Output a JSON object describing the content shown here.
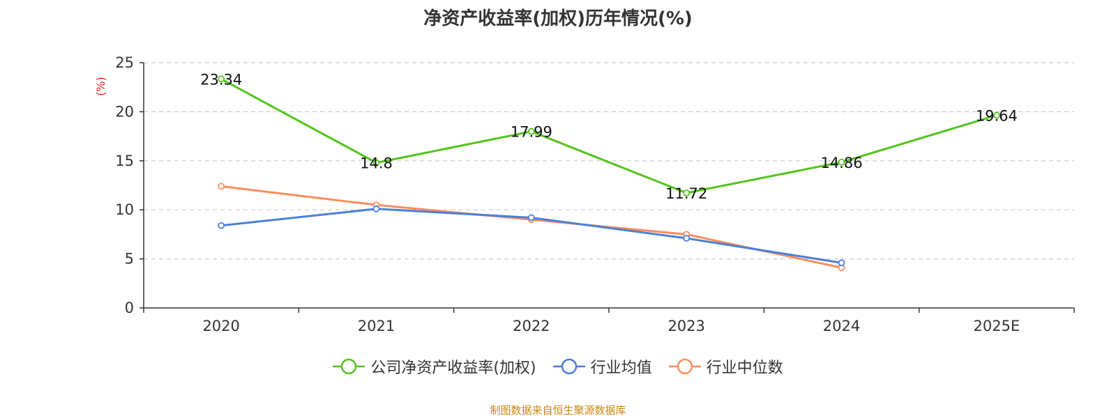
{
  "chart_data": {
    "type": "line",
    "title": "净资产收益率(加权)历年情况(%)",
    "ylabel": "(%)",
    "xlabel": "",
    "categories": [
      "2020",
      "2021",
      "2022",
      "2023",
      "2024",
      "2025E"
    ],
    "ylim": [
      0,
      25
    ],
    "yticks": [
      0,
      5,
      10,
      15,
      20,
      25
    ],
    "grid": true,
    "legend_position": "bottom",
    "series": [
      {
        "name": "公司净资产收益率(加权)",
        "color": "#52c41a",
        "values": [
          23.34,
          14.8,
          17.99,
          11.72,
          14.86,
          19.64
        ],
        "labels": [
          "23.34",
          "14.8",
          "17.99",
          "11.72",
          "14.86",
          "19.64"
        ]
      },
      {
        "name": "行业均值",
        "color": "#4a7fdb",
        "values": [
          8.4,
          10.1,
          9.2,
          7.1,
          4.6,
          null
        ]
      },
      {
        "name": "行业中位数",
        "color": "#ff8c5a",
        "values": [
          12.4,
          10.5,
          9.0,
          7.5,
          4.1,
          null
        ]
      }
    ]
  },
  "source": "制图数据来自恒生聚源数据库"
}
